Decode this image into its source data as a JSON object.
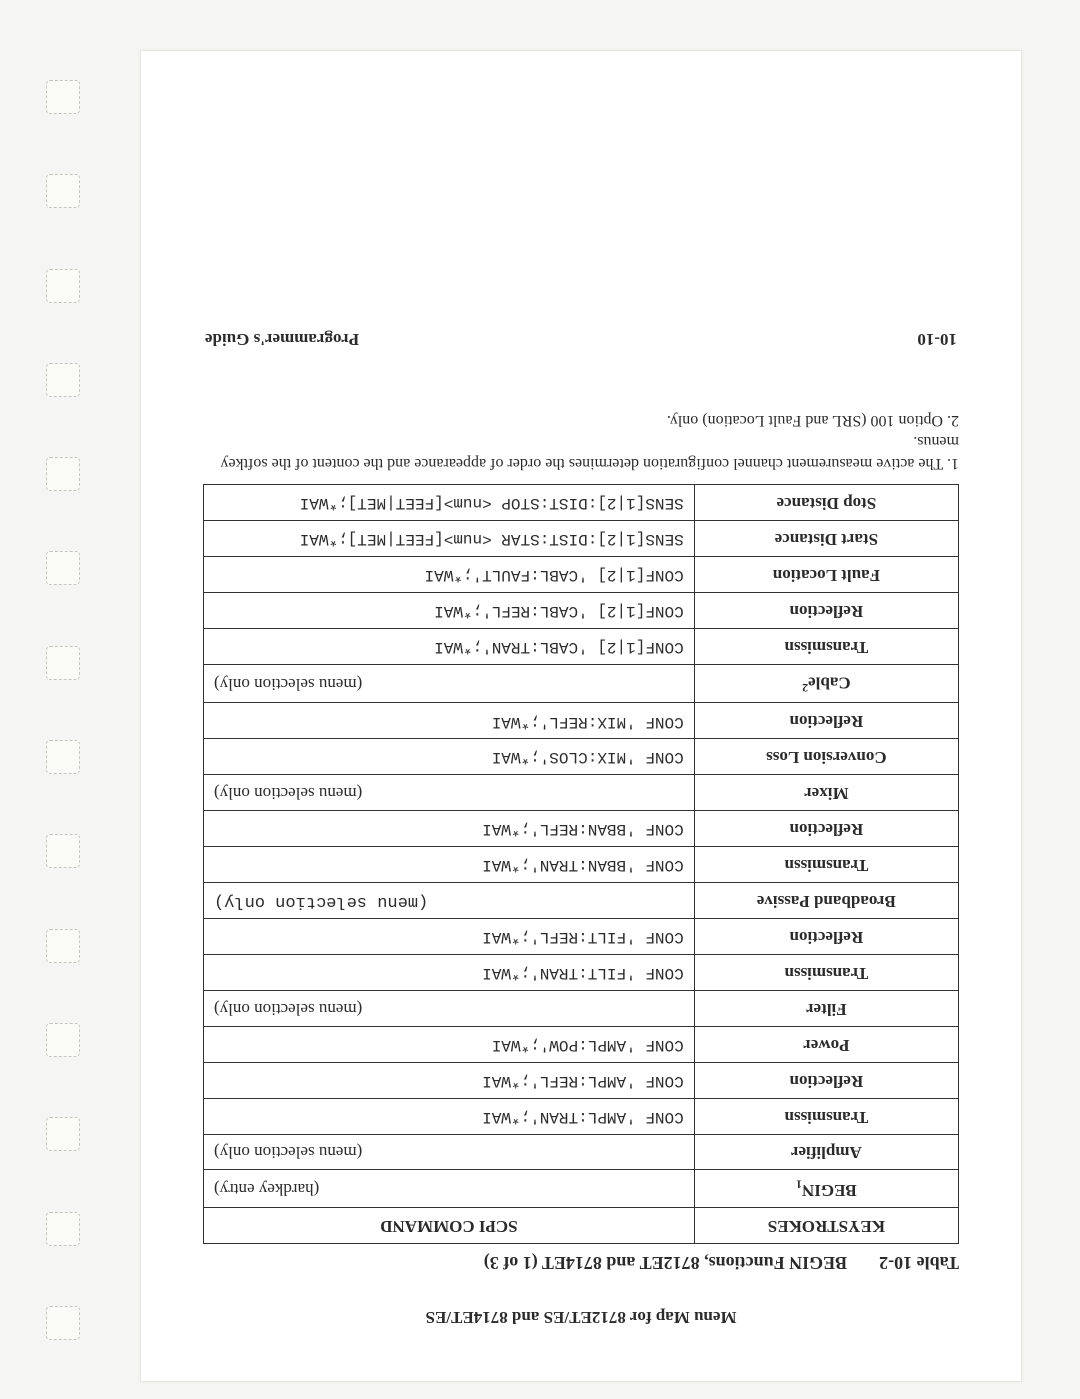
{
  "running_head": "Menu Map for 8712ET/ES and 8714ET/ES",
  "table_number": "Table 10-2",
  "table_title": "BEGIN Functions, 8712ET and 8714ET (1 of 3)",
  "headers": {
    "keystrokes": "KEYSTROKES",
    "scpi": "SCPI COMMAND"
  },
  "rows": [
    {
      "key_html": "BEGIN<sub>1</sub>",
      "scpi": "(hardkey entry)",
      "note": true
    },
    {
      "key_html": "Amplifier",
      "scpi": "(menu selection only)",
      "note": true
    },
    {
      "key_html": "Transmissn",
      "scpi": "CONF 'AMPL:TRAN';*WAI"
    },
    {
      "key_html": "Reflection",
      "scpi": "CONF 'AMPL:REFL';*WAI"
    },
    {
      "key_html": "Power",
      "scpi": "CONF 'AMPL:POW';*WAI"
    },
    {
      "key_html": "Filter",
      "scpi": "(menu selection only)",
      "note": true
    },
    {
      "key_html": "Transmissn",
      "scpi": "CONF 'FILT:TRAN';*WAI"
    },
    {
      "key_html": "Reflection",
      "scpi": "CONF 'FILT:REFL';*WAI"
    },
    {
      "key_html": "Broadband Passive",
      "scpi": "(menu selection only)",
      "note": true,
      "mono_note": true
    },
    {
      "key_html": "Transmissn",
      "scpi": "CONF 'BBAN:TRAN';*WAI"
    },
    {
      "key_html": "Reflection",
      "scpi": "CONF 'BBAN:REFL';*WAI"
    },
    {
      "key_html": "Mixer",
      "scpi": "(menu selection only)",
      "note": true
    },
    {
      "key_html": "Conversion Loss",
      "scpi": "CONF 'MIX:CLOS';*WAI"
    },
    {
      "key_html": "Reflection",
      "scpi": "CONF 'MIX:REFL';*WAI"
    },
    {
      "key_html": "Cable<sup>2</sup>",
      "scpi": "(menu selection only)",
      "note": true
    },
    {
      "key_html": "Transmissn",
      "scpi": "CONF[1|2] 'CABL:TRAN';*WAI"
    },
    {
      "key_html": "Reflection",
      "scpi": "CONF[1|2] 'CABL:REFL';*WAI"
    },
    {
      "key_html": "Fault Location",
      "scpi": "CONF[1|2] 'CABL:FAULT';*WAI"
    },
    {
      "key_html": "Start Distance",
      "scpi": "SENS[1|2]:DIST:STAR <num>[FEET|MET];*WAI"
    },
    {
      "key_html": "Stop Distance",
      "scpi": "SENS[1|2]:DIST:STOP <num>[FEET|MET];*WAI"
    }
  ],
  "footnotes": [
    "1. The active measurement channel configuration determines the order of appearance and the content of the softkey menus.",
    "2. Option 100 (SRL and Fault Location) only."
  ],
  "footer": {
    "page": "10-10",
    "guide": "Programmer's Guide"
  },
  "style": {
    "page_bg": "#ffffff",
    "outer_bg": "#f5f5f3",
    "border": "#333333",
    "font_serif": "Times New Roman",
    "font_mono": "Courier New",
    "head_fontsize": 17,
    "label_fontsize": 18,
    "cell_fontsize": 17,
    "mono_fontsize": 16,
    "footnote_fontsize": 16,
    "hole_count": 14
  }
}
